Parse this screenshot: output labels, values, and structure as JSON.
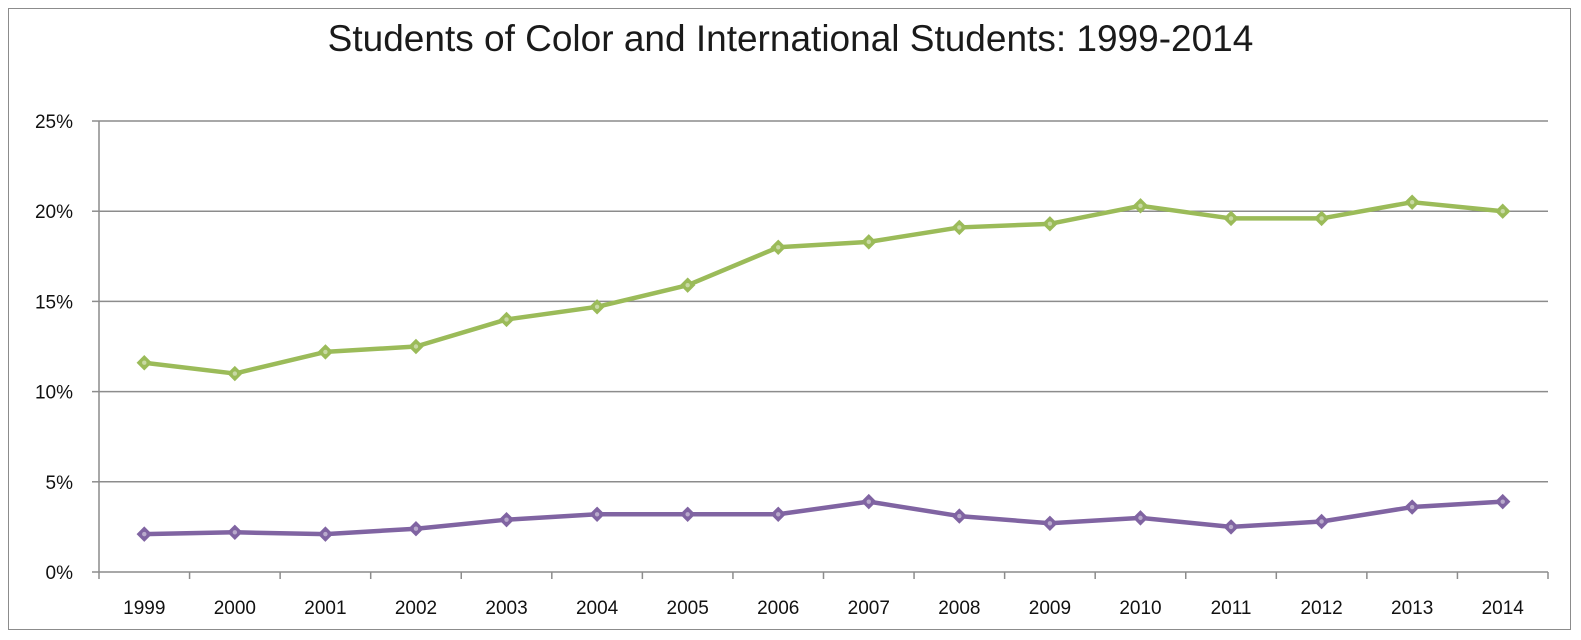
{
  "chart_data": {
    "type": "line",
    "title": "Students of Color and International Students: 1999-2014",
    "xlabel": "",
    "ylabel": "",
    "categories": [
      "1999",
      "2000",
      "2001",
      "2002",
      "2003",
      "2004",
      "2005",
      "2006",
      "2007",
      "2008",
      "2009",
      "2010",
      "2011",
      "2012",
      "2013",
      "2014"
    ],
    "ylim": [
      0,
      25
    ],
    "yticks": [
      0,
      5,
      10,
      15,
      20,
      25
    ],
    "ytick_labels": [
      "0%",
      "5%",
      "10%",
      "15%",
      "20%",
      "25%"
    ],
    "grid": true,
    "legend": "none",
    "series": [
      {
        "color": "#9bbb59",
        "values": [
          11.6,
          11.0,
          12.2,
          12.5,
          14.0,
          14.7,
          15.9,
          18.0,
          18.3,
          19.1,
          19.3,
          20.3,
          19.6,
          19.6,
          20.5,
          20.0
        ]
      },
      {
        "color": "#8064a2",
        "values": [
          2.1,
          2.2,
          2.1,
          2.4,
          2.9,
          3.2,
          3.2,
          3.2,
          3.9,
          3.1,
          2.7,
          3.0,
          2.5,
          2.8,
          3.6,
          3.9
        ]
      }
    ]
  }
}
